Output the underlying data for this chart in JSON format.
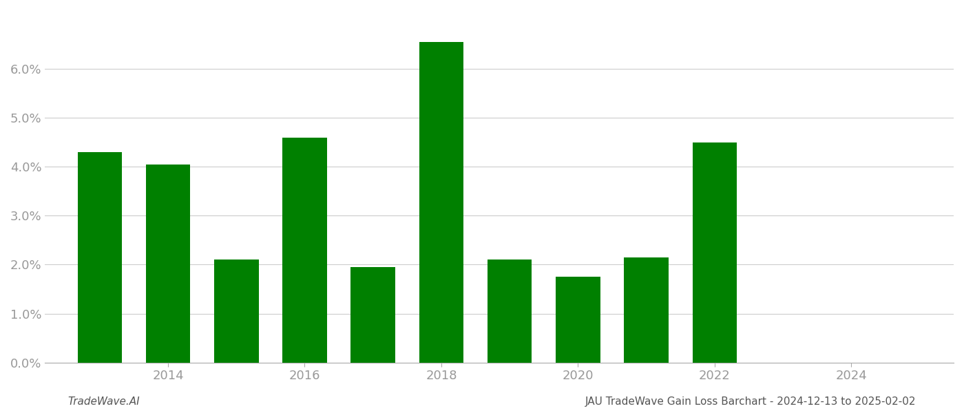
{
  "years": [
    2013,
    2014,
    2015,
    2016,
    2017,
    2018,
    2019,
    2020,
    2021,
    2022
  ],
  "values": [
    0.043,
    0.0405,
    0.021,
    0.046,
    0.0195,
    0.0655,
    0.021,
    0.0175,
    0.0215,
    0.045
  ],
  "bar_color": "#008000",
  "ylim": [
    0,
    0.072
  ],
  "yticks": [
    0.0,
    0.01,
    0.02,
    0.03,
    0.04,
    0.05,
    0.06
  ],
  "xlim_left": 2012.2,
  "xlim_right": 2025.5,
  "xtick_years": [
    2014,
    2016,
    2018,
    2020,
    2022,
    2024
  ],
  "footer_left": "TradeWave.AI",
  "footer_right": "JAU TradeWave Gain Loss Barchart - 2024-12-13 to 2025-02-02",
  "background_color": "#ffffff",
  "grid_color": "#cccccc",
  "tick_label_color": "#999999",
  "footer_color": "#555555",
  "bar_width": 0.65,
  "tick_fontsize": 13,
  "footer_fontsize": 11
}
